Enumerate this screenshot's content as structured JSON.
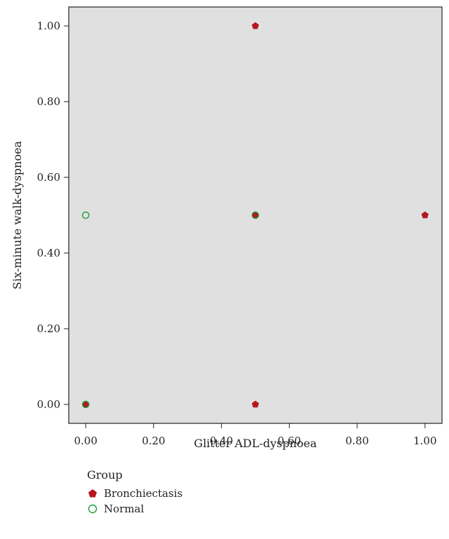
{
  "chart_data": {
    "type": "scatter",
    "xlabel": "Glitter ADL-dyspnoea",
    "ylabel": "Six-minute walk-dyspnoea",
    "xlim": [
      -0.05,
      1.05
    ],
    "ylim": [
      -0.05,
      1.05
    ],
    "xticks": [
      "0.00",
      "0.20",
      "0.40",
      "0.60",
      "0.80",
      "1.00"
    ],
    "yticks": [
      "0.00",
      "0.20",
      "0.40",
      "0.60",
      "0.80",
      "1.00"
    ],
    "grid": false,
    "legend_title": "Group",
    "legend_position": "bottom-left",
    "series": [
      {
        "name": "Bronchiectasis",
        "marker": "filled-pentagon",
        "color": "#b5171f",
        "points": [
          [
            0.5,
            1.0
          ],
          [
            0.5,
            0.5
          ],
          [
            1.0,
            0.5
          ],
          [
            0.0,
            0.0
          ],
          [
            0.5,
            0.0
          ]
        ]
      },
      {
        "name": "Normal",
        "marker": "open-circle",
        "color": "#1e9e3a",
        "points": [
          [
            0.0,
            0.5
          ],
          [
            0.5,
            0.5
          ],
          [
            0.0,
            0.0
          ]
        ]
      }
    ],
    "plot_background": "#e0e0e0"
  }
}
